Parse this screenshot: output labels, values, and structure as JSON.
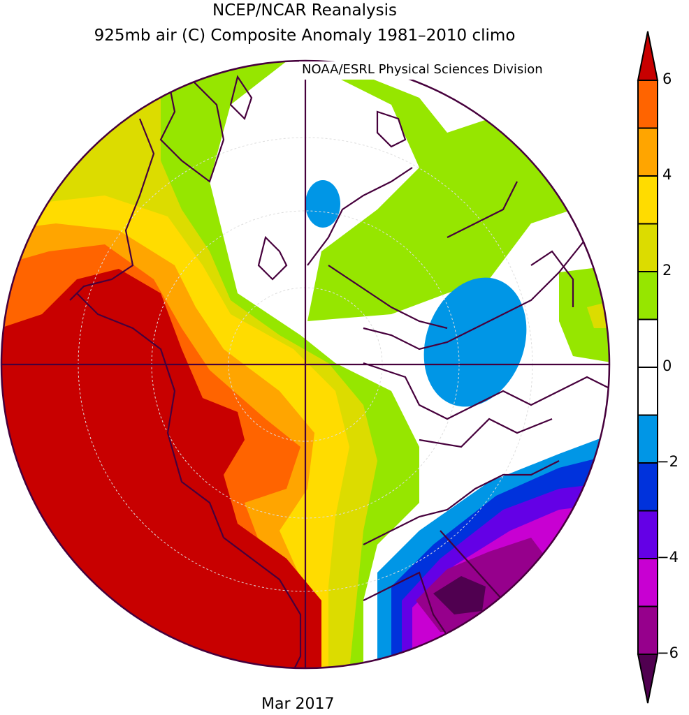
{
  "header": {
    "title_line1": "NCEP/NCAR Reanalysis",
    "title_line2": "925mb air (C) Composite Anomaly 1981–2010 climo",
    "credit": "NOAA/ESRL Physical Sciences Division"
  },
  "footer": {
    "date": "Mar 2017"
  },
  "colorbar": {
    "levels": [
      {
        "lo": 6,
        "hi": null,
        "color": "#c80000"
      },
      {
        "lo": 5,
        "hi": 6,
        "color": "#ff6400"
      },
      {
        "lo": 4,
        "hi": 5,
        "color": "#ffa500"
      },
      {
        "lo": 3,
        "hi": 4,
        "color": "#ffdc00"
      },
      {
        "lo": 2,
        "hi": 3,
        "color": "#dcdc00"
      },
      {
        "lo": 1,
        "hi": 2,
        "color": "#96e600"
      },
      {
        "lo": 0,
        "hi": 1,
        "color": "#ffffff"
      },
      {
        "lo": -1,
        "hi": 0,
        "color": "#ffffff"
      },
      {
        "lo": -2,
        "hi": -1,
        "color": "#0096e6"
      },
      {
        "lo": -3,
        "hi": -2,
        "color": "#0032dc"
      },
      {
        "lo": -4,
        "hi": -3,
        "color": "#6400e6"
      },
      {
        "lo": -5,
        "hi": -4,
        "color": "#c800d2"
      },
      {
        "lo": -6,
        "hi": -5,
        "color": "#96008c"
      },
      {
        "lo": null,
        "hi": -6,
        "color": "#500050"
      }
    ],
    "tick_labels": [
      "6",
      "4",
      "2",
      "0",
      "−2",
      "−4",
      "−6"
    ]
  },
  "colors": {
    "coastline": "#46003c",
    "outline": "#46003c"
  }
}
